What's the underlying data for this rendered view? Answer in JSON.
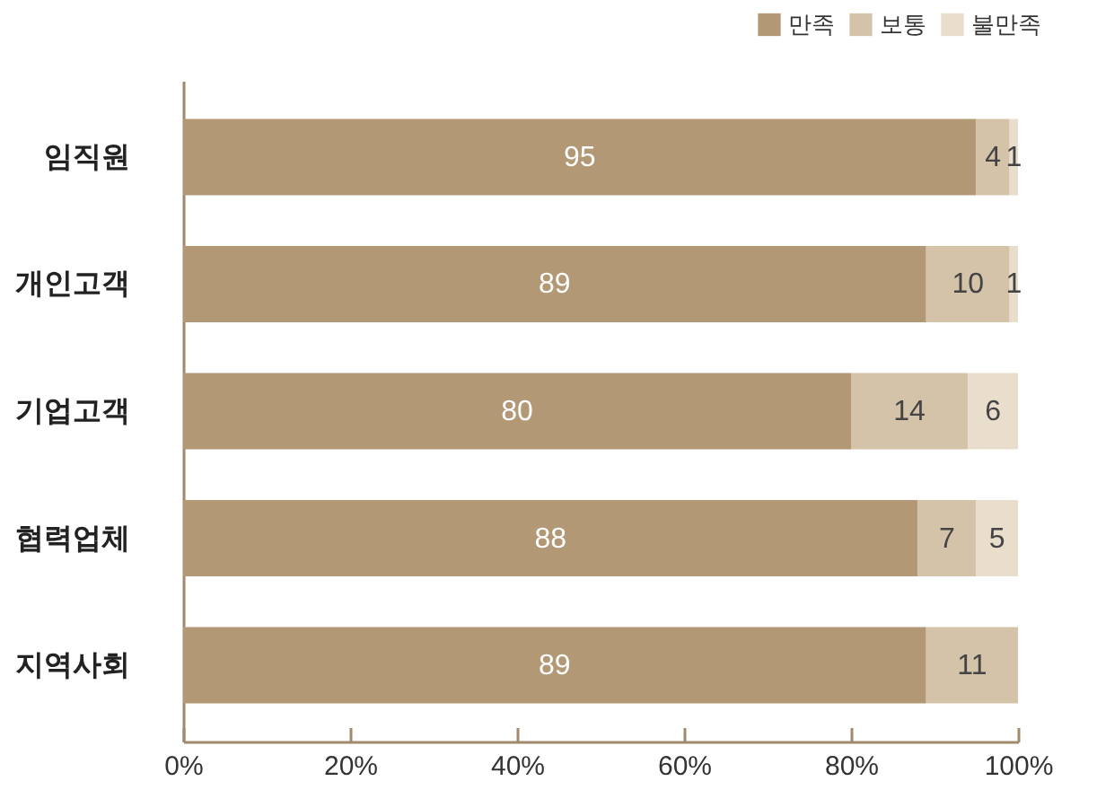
{
  "chart_data": {
    "type": "bar",
    "orientation": "horizontal",
    "stacked": true,
    "data_labels": true,
    "legend": "top right",
    "grid": false,
    "categories": [
      "임직원",
      "개인고객",
      "기업고객",
      "협력업체",
      "지역사회"
    ],
    "series": [
      {
        "name": "만족",
        "color": "#b39875",
        "values": [
          95,
          89,
          80,
          88,
          89
        ]
      },
      {
        "name": "보통",
        "color": "#d5c3a9",
        "values": [
          4,
          10,
          14,
          7,
          11
        ]
      },
      {
        "name": "불만족",
        "color": "#e9ddcc",
        "values": [
          1,
          1,
          6,
          5,
          null
        ]
      }
    ],
    "xlim": [
      0,
      100
    ],
    "xticks": [
      {
        "value": 0,
        "label": "0%"
      },
      {
        "value": 20,
        "label": "20%"
      },
      {
        "value": 40,
        "label": "40%"
      },
      {
        "value": 60,
        "label": "60%"
      },
      {
        "value": 80,
        "label": "80%"
      },
      {
        "value": 100,
        "label": "100%"
      }
    ]
  }
}
